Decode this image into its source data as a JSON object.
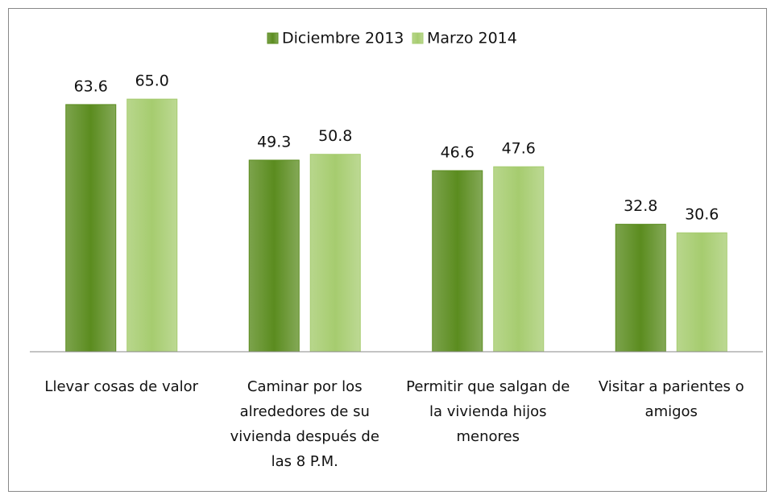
{
  "chart_data": {
    "type": "bar",
    "categories": [
      "Llevar cosas de valor",
      "Caminar por los alrededores de su vivienda después de las 8 P.M.",
      "Permitir que salgan de la vivienda hijos menores",
      "Visitar a parientes o amigos"
    ],
    "series": [
      {
        "name": "Diciembre 2013",
        "color": "#5b8c1f",
        "values": [
          63.6,
          49.3,
          46.6,
          32.8
        ],
        "value_labels": [
          "63.6",
          "49.3",
          "46.6",
          "32.8"
        ]
      },
      {
        "name": "Marzo 2014",
        "color": "#a6cc6f",
        "values": [
          65.0,
          50.8,
          47.6,
          30.6
        ],
        "value_labels": [
          "65.0",
          "50.8",
          "47.6",
          "30.6"
        ]
      }
    ],
    "ylim": [
      0,
      70
    ],
    "legend": "top"
  }
}
